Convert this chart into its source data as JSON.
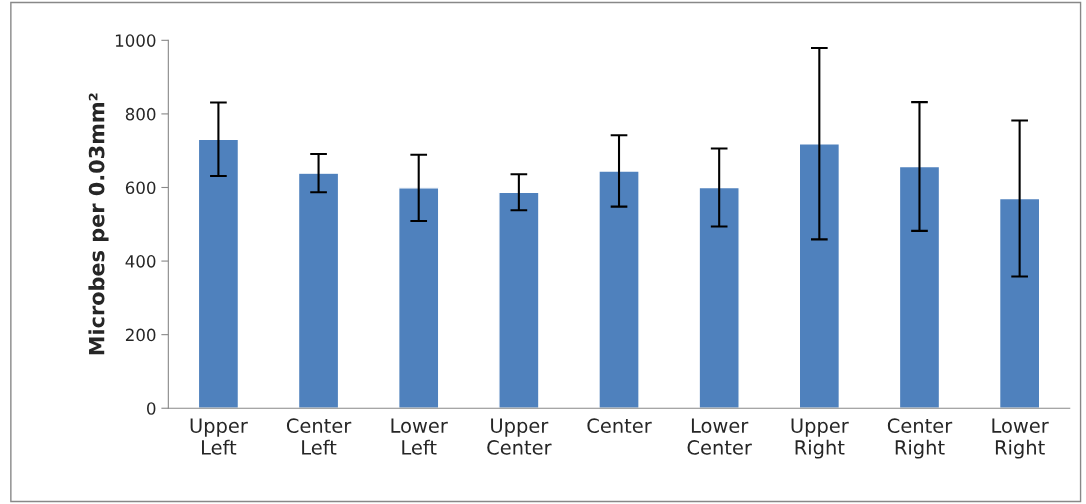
{
  "chart_data": {
    "type": "bar",
    "ylabel": "Microbes per 0.03mm²",
    "categories": [
      "Upper\nLeft",
      "Center\nLeft",
      "Lower\nLeft",
      "Upper\nCenter",
      "Center",
      "Lower\nCenter",
      "Upper\nRight",
      "Center\nRight",
      "Lower\nRight"
    ],
    "values": [
      731,
      639,
      599,
      587,
      645,
      600,
      719,
      657,
      570
    ],
    "errors": [
      100,
      52,
      90,
      49,
      97,
      106,
      260,
      175,
      212
    ],
    "color": "#4f81bd",
    "ylim": [
      0,
      1000
    ],
    "yticks": [
      0,
      200,
      400,
      600,
      800,
      1000
    ],
    "grid": false
  }
}
